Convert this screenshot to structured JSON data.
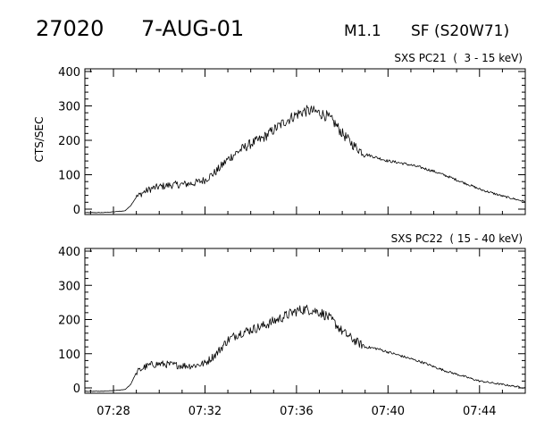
{
  "header": {
    "event_id": "27020",
    "date": "7-AUG-01",
    "goes_class": "M1.1",
    "flare_info": "SF (S20W71)"
  },
  "chart_data": [
    {
      "type": "line",
      "title": "SXS PC21  (  3 - 15 keV)",
      "ylabel": "CTS/SEC",
      "xlabel": "",
      "ylim": [
        0,
        400
      ],
      "xlim": [
        "07:26:45",
        "07:46:00"
      ],
      "yticks": [
        "0",
        "100",
        "200",
        "300",
        "400"
      ],
      "xticks": [
        "07:28",
        "07:32",
        "07:36",
        "07:40",
        "07:44"
      ],
      "show_xtick_labels": false,
      "grid": false,
      "noise_level": "high in 07:29-07:39, low after 07:39",
      "series": [
        {
          "x": [
            "07:26:45",
            "07:27:30",
            "07:28:00",
            "07:28:30",
            "07:28:45",
            "07:29:00",
            "07:29:20",
            "07:29:40",
            "07:30:00",
            "07:30:30",
            "07:31:00",
            "07:31:30",
            "07:32:00",
            "07:32:30",
            "07:33:00",
            "07:33:30",
            "07:34:00",
            "07:34:30",
            "07:35:00",
            "07:35:30",
            "07:36:00",
            "07:36:20",
            "07:36:40",
            "07:37:00",
            "07:37:20",
            "07:37:40",
            "07:38:00",
            "07:38:30",
            "07:39:00",
            "07:39:30",
            "07:40:00",
            "07:40:30",
            "07:41:00",
            "07:41:30",
            "07:42:00",
            "07:42:30",
            "07:43:00",
            "07:43:30",
            "07:44:00",
            "07:44:30",
            "07:45:00",
            "07:45:30",
            "07:46:00"
          ],
          "values": [
            -10,
            -10,
            -8,
            -5,
            10,
            35,
            50,
            60,
            65,
            70,
            72,
            75,
            85,
            110,
            145,
            170,
            190,
            205,
            230,
            255,
            275,
            285,
            285,
            280,
            270,
            250,
            220,
            185,
            160,
            150,
            140,
            135,
            128,
            120,
            110,
            98,
            85,
            72,
            58,
            48,
            38,
            30,
            22
          ]
        }
      ]
    },
    {
      "type": "line",
      "title": "SXS PC22  ( 15 - 40 keV)",
      "ylabel": "",
      "xlabel": "",
      "ylim": [
        0,
        400
      ],
      "xlim": [
        "07:26:45",
        "07:46:00"
      ],
      "yticks": [
        "0",
        "100",
        "200",
        "300",
        "400"
      ],
      "xticks": [
        "07:28",
        "07:32",
        "07:36",
        "07:40",
        "07:44"
      ],
      "show_xtick_labels": true,
      "grid": false,
      "noise_level": "high in 07:29-07:39, low after 07:39",
      "series": [
        {
          "x": [
            "07:26:45",
            "07:27:30",
            "07:28:00",
            "07:28:30",
            "07:28:45",
            "07:29:00",
            "07:29:20",
            "07:29:40",
            "07:30:00",
            "07:30:30",
            "07:31:00",
            "07:31:30",
            "07:32:00",
            "07:32:30",
            "07:33:00",
            "07:33:30",
            "07:34:00",
            "07:34:30",
            "07:35:00",
            "07:35:30",
            "07:36:00",
            "07:36:20",
            "07:36:40",
            "07:37:00",
            "07:37:20",
            "07:37:40",
            "07:38:00",
            "07:38:30",
            "07:39:00",
            "07:39:30",
            "07:40:00",
            "07:40:30",
            "07:41:00",
            "07:41:30",
            "07:42:00",
            "07:42:30",
            "07:43:00",
            "07:43:30",
            "07:44:00",
            "07:44:30",
            "07:45:00",
            "07:45:30",
            "07:46:00"
          ],
          "values": [
            -10,
            -10,
            -8,
            -5,
            10,
            45,
            60,
            68,
            70,
            68,
            65,
            65,
            72,
            100,
            140,
            160,
            170,
            180,
            195,
            210,
            225,
            230,
            228,
            222,
            210,
            190,
            165,
            140,
            120,
            115,
            105,
            95,
            85,
            75,
            62,
            50,
            40,
            30,
            20,
            15,
            10,
            5,
            0
          ]
        }
      ]
    }
  ]
}
